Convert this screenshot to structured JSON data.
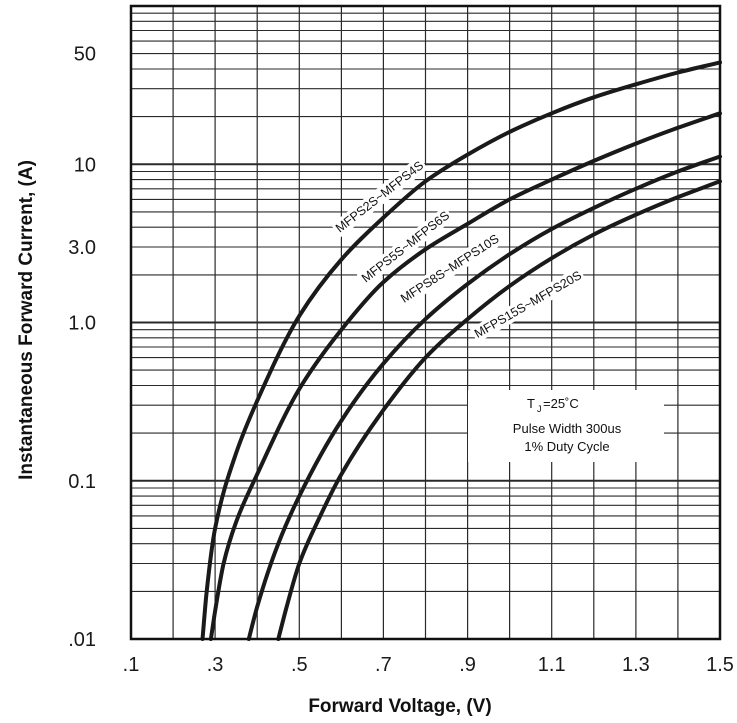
{
  "chart_data": {
    "type": "line",
    "x_axis": {
      "label": "Forward Voltage, (V)",
      "range": [
        0.1,
        1.5
      ],
      "ticks": [
        0.1,
        0.3,
        0.5,
        0.7,
        0.9,
        1.1,
        1.3,
        1.5
      ],
      "tick_labels": [
        ".1",
        ".3",
        ".5",
        ".7",
        ".9",
        "1.1",
        "1.3",
        "1.5"
      ]
    },
    "y_axis": {
      "label": "Instantaneous Forward Current, (A)",
      "scale": "log",
      "range": [
        0.01,
        100
      ],
      "ticks": [
        0.01,
        0.1,
        1.0,
        3.0,
        10,
        50
      ],
      "tick_labels": [
        ".01",
        "0.1",
        "1.0",
        "3.0",
        "10",
        "50"
      ]
    },
    "grid": true,
    "series": [
      {
        "name": "MFPS2S~MFPS4S",
        "x": [
          0.27,
          0.28,
          0.3,
          0.35,
          0.4,
          0.5,
          0.6,
          0.7,
          0.8,
          0.9,
          1.0,
          1.1,
          1.2,
          1.3,
          1.4,
          1.5
        ],
        "y": [
          0.01,
          0.02,
          0.05,
          0.15,
          0.32,
          1.1,
          2.5,
          4.6,
          7.8,
          11.5,
          16,
          21,
          26.5,
          32,
          38,
          44
        ]
      },
      {
        "name": "MFPS5S~MFPS6S",
        "x": [
          0.29,
          0.3,
          0.32,
          0.35,
          0.4,
          0.5,
          0.6,
          0.7,
          0.8,
          0.9,
          1.0,
          1.1,
          1.2,
          1.3,
          1.4,
          1.5
        ],
        "y": [
          0.01,
          0.015,
          0.03,
          0.055,
          0.11,
          0.38,
          0.9,
          1.8,
          2.9,
          4.2,
          6.0,
          8.0,
          10.5,
          13.5,
          17,
          21
        ]
      },
      {
        "name": "MFPS8S~MFPS10S",
        "x": [
          0.38,
          0.4,
          0.45,
          0.5,
          0.6,
          0.7,
          0.8,
          0.9,
          1.0,
          1.1,
          1.2,
          1.3,
          1.4,
          1.5
        ],
        "y": [
          0.01,
          0.016,
          0.04,
          0.08,
          0.24,
          0.55,
          1.05,
          1.75,
          2.7,
          3.9,
          5.3,
          7.0,
          9.0,
          11.2
        ]
      },
      {
        "name": "MFPS15S~MFPS20S",
        "x": [
          0.45,
          0.47,
          0.5,
          0.55,
          0.6,
          0.7,
          0.8,
          0.9,
          1.0,
          1.1,
          1.2,
          1.3,
          1.4,
          1.5
        ],
        "y": [
          0.01,
          0.016,
          0.03,
          0.06,
          0.11,
          0.28,
          0.6,
          1.05,
          1.7,
          2.55,
          3.6,
          4.8,
          6.2,
          7.8
        ]
      }
    ],
    "annotations": [
      "T",
      "J",
      "=25˚C",
      "Pulse Width 300us",
      "1% Duty Cycle"
    ],
    "line_color": "#1a1a1a",
    "grid_color": "#2a2a2a"
  }
}
